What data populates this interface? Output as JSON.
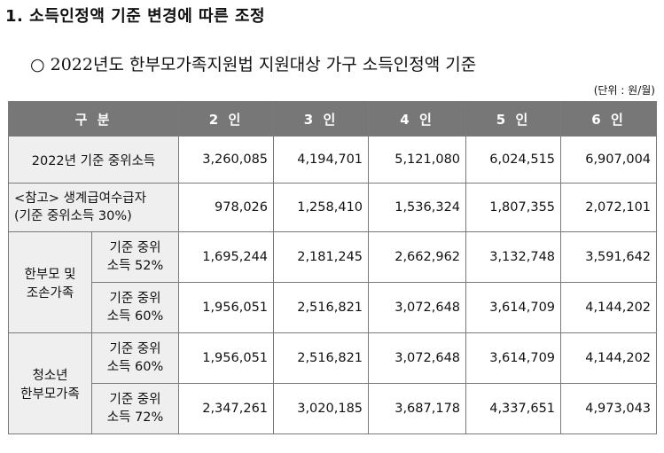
{
  "section_title": "1. 소득인정액 기준 변경에 따른 조정",
  "subtitle": "○ 2022년도 한부모가족지원법 지원대상 가구 소득인정액 기준",
  "unit_note": "(단위 : 원/월)",
  "table": {
    "headers": [
      "구 분",
      "2 인",
      "3 인",
      "4 인",
      "5 인",
      "6 인"
    ],
    "rows": [
      {
        "label": "2022년 기준 중위소득",
        "values": [
          "3,260,085",
          "4,194,701",
          "5,121,080",
          "6,024,515",
          "6,907,004"
        ]
      },
      {
        "label_line1": "<참고> 생계급여수급자",
        "label_line2": "(기준 중위소득 30%)",
        "values": [
          "978,026",
          "1,258,410",
          "1,536,324",
          "1,807,355",
          "2,072,101"
        ]
      }
    ],
    "groups": [
      {
        "label_line1": "한부모 및",
        "label_line2": "조손가족",
        "subrows": [
          {
            "sub_line1": "기준 중위",
            "sub_line2": "소득 52%",
            "values": [
              "1,695,244",
              "2,181,245",
              "2,662,962",
              "3,132,748",
              "3,591,642"
            ]
          },
          {
            "sub_line1": "기준 중위",
            "sub_line2": "소득 60%",
            "values": [
              "1,956,051",
              "2,516,821",
              "3,072,648",
              "3,614,709",
              "4,144,202"
            ]
          }
        ]
      },
      {
        "label_line1": "청소년",
        "label_line2": "한부모가족",
        "subrows": [
          {
            "sub_line1": "기준 중위",
            "sub_line2": "소득 60%",
            "values": [
              "1,956,051",
              "2,516,821",
              "3,072,648",
              "3,614,709",
              "4,144,202"
            ]
          },
          {
            "sub_line1": "기준 중위",
            "sub_line2": "소득 72%",
            "values": [
              "2,347,261",
              "3,020,185",
              "3,687,178",
              "4,337,651",
              "4,973,043"
            ]
          }
        ]
      }
    ]
  }
}
